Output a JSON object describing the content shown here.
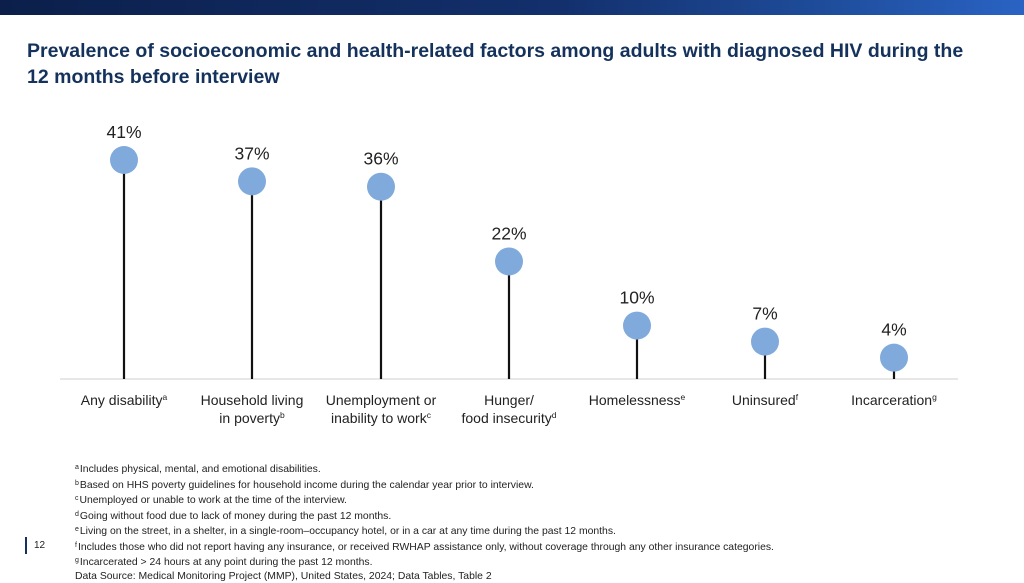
{
  "slide": {
    "title": "Prevalence of socioeconomic and health-related factors among adults with diagnosed HIV during the 12 months before interview",
    "page_number": "12",
    "colors": {
      "accent": "#14325c",
      "marker": "#7faadb",
      "stem": "#111111",
      "axis": "#cfcfcf"
    }
  },
  "chart_data": {
    "type": "lollipop",
    "title": "Prevalence of socioeconomic and health-related factors among adults with diagnosed HIV during the 12 months before interview",
    "categories": [
      {
        "lines": [
          "Any disability"
        ],
        "sup": "a"
      },
      {
        "lines": [
          "Household living",
          "in poverty"
        ],
        "sup": "b"
      },
      {
        "lines": [
          "Unemployment or",
          "inability to work"
        ],
        "sup": "c"
      },
      {
        "lines": [
          "Hunger/",
          "food insecurity"
        ],
        "sup": "d"
      },
      {
        "lines": [
          "Homelessness"
        ],
        "sup": "e"
      },
      {
        "lines": [
          "Uninsured"
        ],
        "sup": "f"
      },
      {
        "lines": [
          "Incarceration"
        ],
        "sup": "g"
      }
    ],
    "values": [
      41,
      37,
      36,
      22,
      10,
      7,
      4
    ],
    "value_labels": [
      "41%",
      "37%",
      "36%",
      "22%",
      "10%",
      "7%",
      "4%"
    ],
    "unit": "%",
    "ylim": [
      0,
      41
    ],
    "grid": false
  },
  "footnotes": [
    {
      "mark": "a",
      "text": "Includes physical, mental, and emotional disabilities."
    },
    {
      "mark": "b",
      "text": "Based on HHS poverty guidelines for household income during the calendar year prior to interview."
    },
    {
      "mark": "c",
      "text": "Unemployed or unable to work at the time of the interview."
    },
    {
      "mark": "d",
      "text": "Going without food due to lack of money during the past 12 months."
    },
    {
      "mark": "e",
      "text": "Living on the street, in a shelter, in a single-room–occupancy hotel, or in a car at any time during the past 12 months."
    },
    {
      "mark": "f",
      "text": "Includes those who did not report having any insurance, or received RWHAP assistance only, without coverage through any other insurance categories."
    },
    {
      "mark": "g",
      "text": "Incarcerated > 24 hours at any point during the past 12 months."
    }
  ],
  "data_source": "Data Source: Medical Monitoring Project (MMP), United States, 2024; Data Tables, Table 2"
}
